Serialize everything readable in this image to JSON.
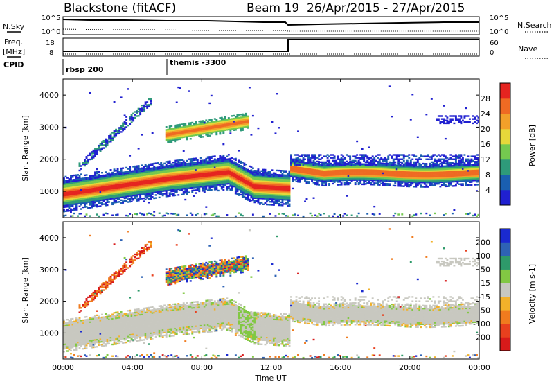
{
  "header": {
    "station": "Blackstone (fitACF)",
    "beam": "Beam 19",
    "date_range": "26/Apr/2015 - 27/Apr/2015"
  },
  "left_labels": {
    "nsky": "N.Sky",
    "freq": "Freq.",
    "freq_unit": "[MHz]",
    "cpid": "CPID"
  },
  "right_labels": {
    "nsearch": "N.Search",
    "nave": "Nave"
  },
  "noise_axis": {
    "left_ticks": [
      "10^5",
      "10^0"
    ],
    "right_ticks": [
      "10^5",
      "10^0"
    ]
  },
  "freq_axis": {
    "left_ticks": [
      "18",
      "8"
    ],
    "right_ticks": [
      "60",
      "0"
    ]
  },
  "cpid_labels": [
    {
      "text": "rbsp 200",
      "x": "00:00"
    },
    {
      "text": "themis -3300",
      "x": "06:00"
    }
  ],
  "chart_data": [
    {
      "type": "heatmap",
      "name": "power-panel",
      "ylabel": "Slant Range [km]",
      "xlabel": "",
      "x_ticks": [
        "00:00",
        "04:00",
        "08:00",
        "12:00",
        "16:00",
        "20:00",
        "00:00"
      ],
      "y_ticks": [
        1000,
        2000,
        3000,
        4000
      ],
      "xlim": [
        "00:00",
        "24:00"
      ],
      "ylim": [
        180,
        4500
      ],
      "colorbar_label": "Power [dB]",
      "colorbar_ticks": [
        4,
        8,
        12,
        16,
        20,
        24,
        28
      ],
      "colors": [
        "#2020d0",
        "#1a5fb0",
        "#2e9a7a",
        "#74c94f",
        "#e6d83a",
        "#f2a02a",
        "#ef6a23",
        "#e52420"
      ]
    },
    {
      "type": "heatmap",
      "name": "velocity-panel",
      "ylabel": "Slant Range [km]",
      "xlabel": "Time UT",
      "x_ticks": [
        "00:00",
        "04:00",
        "08:00",
        "12:00",
        "16:00",
        "20:00",
        "00:00"
      ],
      "y_ticks": [
        1000,
        2000,
        3000,
        4000
      ],
      "xlim": [
        "00:00",
        "24:00"
      ],
      "ylim": [
        180,
        4500
      ],
      "colorbar_label": "Velocity [m s-1]",
      "colorbar_ticks": [
        200,
        100,
        50,
        15,
        -15,
        -50,
        -100,
        -200
      ],
      "colors": [
        "#1a2ad0",
        "#2e63b5",
        "#2e9a6a",
        "#82c843",
        "#c8c8c0",
        "#f2b12a",
        "#f07b1e",
        "#e8401e",
        "#d81a1a"
      ]
    }
  ]
}
